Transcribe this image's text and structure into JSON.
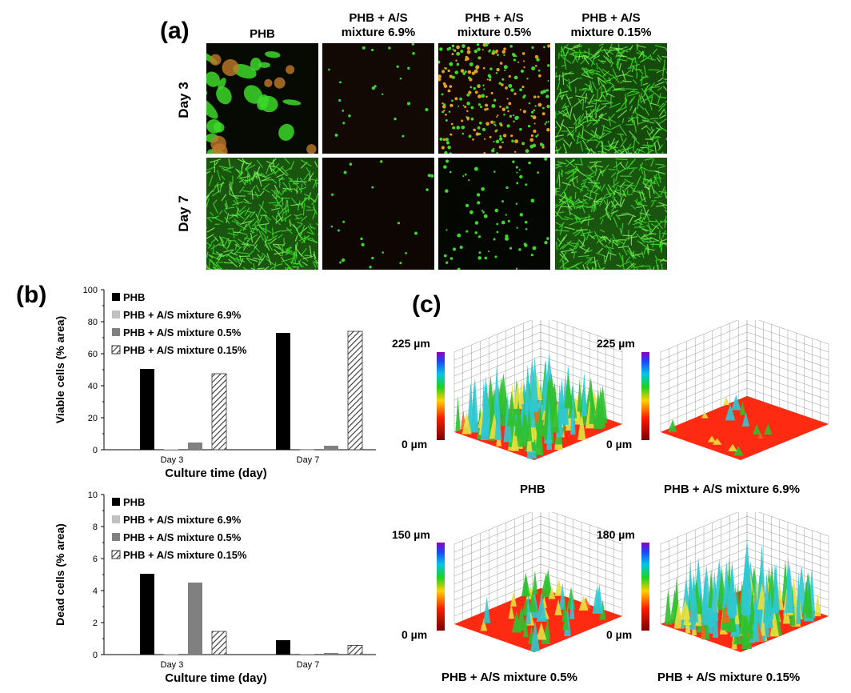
{
  "panel_a": {
    "label": "(a)",
    "columns": [
      "PHB",
      "PHB + A/S mixture 6.9%",
      "PHB + A/S mixture 0.5%",
      "PHB + A/S mixture 0.15%"
    ],
    "column_lines": [
      [
        "PHB"
      ],
      [
        "PHB + A/S",
        "mixture 6.9%"
      ],
      [
        "PHB + A/S",
        "mixture 0.5%"
      ],
      [
        "PHB + A/S",
        "mixture 0.15%"
      ]
    ],
    "rows": [
      "Day 3",
      "Day 7"
    ]
  },
  "panel_b": {
    "label": "(b)"
  },
  "panel_c": {
    "label": "(c)",
    "plots": [
      {
        "name": "PHB",
        "max_label": "225 µm",
        "min_label": "0 µm"
      },
      {
        "name": "PHB + A/S mixture 6.9%",
        "max_label": "225 µm",
        "min_label": "0 µm"
      },
      {
        "name": "PHB + A/S mixture 0.5%",
        "max_label": "150 µm",
        "min_label": "0 µm"
      },
      {
        "name": "PHB + A/S mixture 0.15%",
        "max_label": "180 µm",
        "min_label": "0 µm"
      }
    ]
  },
  "chart_data": [
    {
      "type": "bar",
      "categories": [
        "Day 3",
        "Day 7"
      ],
      "series": [
        {
          "name": "PHB",
          "values": [
            50.5,
            73
          ]
        },
        {
          "name": "PHB + A/S mixture 6.9%",
          "values": [
            0.3,
            0.1
          ]
        },
        {
          "name": "PHB + A/S mixture 0.5%",
          "values": [
            4.5,
            2.5
          ]
        },
        {
          "name": "PHB + A/S mixture 0.15%",
          "values": [
            47.5,
            74
          ]
        }
      ],
      "xlabel": "Culture time (day)",
      "ylabel": "Viable cells (% area)",
      "ylim": [
        0,
        100
      ],
      "yticks": [
        0,
        20,
        40,
        60,
        80,
        100
      ],
      "legend": "top-left",
      "grid": false
    },
    {
      "type": "bar",
      "categories": [
        "Day 3",
        "Day 7"
      ],
      "series": [
        {
          "name": "PHB",
          "values": [
            5.05,
            0.9
          ]
        },
        {
          "name": "PHB + A/S mixture 6.9%",
          "values": [
            0.02,
            0.05
          ]
        },
        {
          "name": "PHB + A/S mixture 0.5%",
          "values": [
            4.5,
            0.1
          ]
        },
        {
          "name": "PHB + A/S mixture 0.15%",
          "values": [
            1.45,
            0.58
          ]
        }
      ],
      "xlabel": "Culture time (day)",
      "ylabel": "Dead cells (% area)",
      "ylim": [
        0,
        10
      ],
      "yticks": [
        0,
        2,
        4,
        6,
        8,
        10
      ],
      "legend": "top-left",
      "grid": false
    }
  ],
  "colors": {
    "phb": "#000000",
    "mix69": "#c0c0c0",
    "mix05": "#808080",
    "mix015": "hatched",
    "micro_green": "#3dd82a",
    "surface_base": "#ff2a12"
  }
}
